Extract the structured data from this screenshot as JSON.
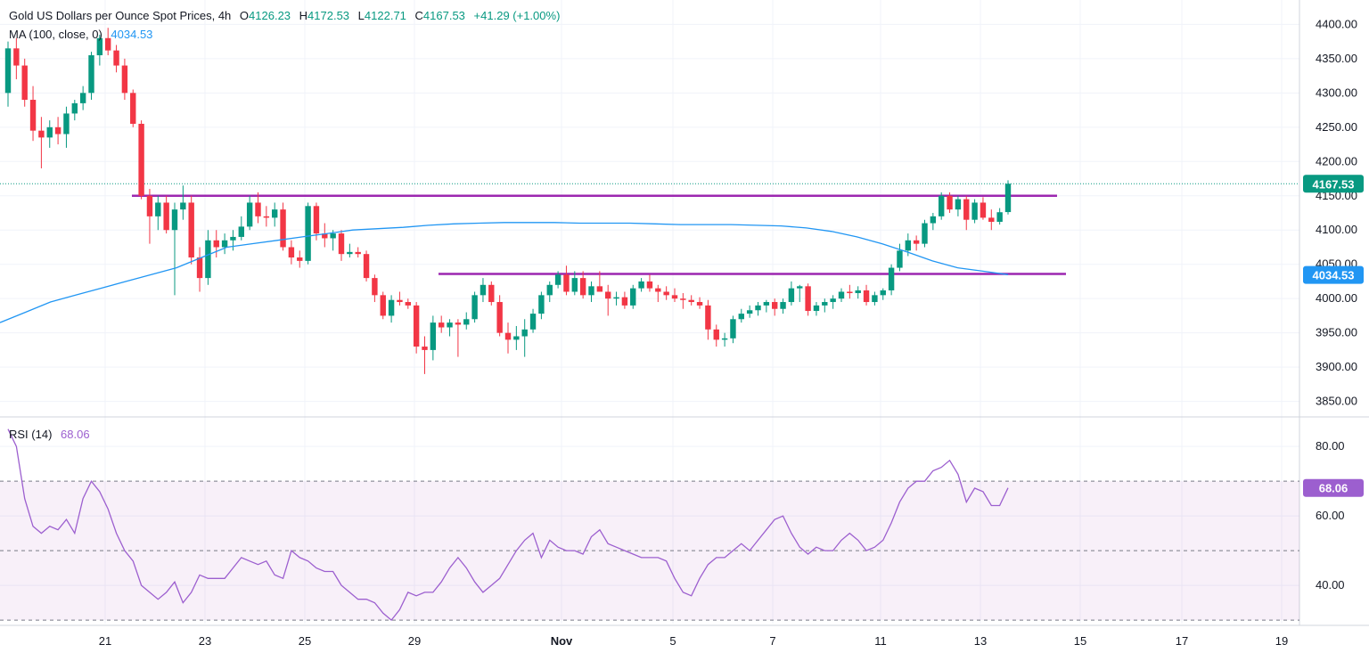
{
  "header": {
    "symbol": "Gold US Dollars per Ounce Spot Prices, 4h",
    "open_label": "O",
    "open": "4126.23",
    "high_label": "H",
    "high": "4172.53",
    "low_label": "L",
    "low": "4122.71",
    "close_label": "C",
    "close": "4167.53",
    "change": "+41.29 (+1.00%)",
    "ma_label": "MA (100, close, 0)",
    "ma_value": "4034.53",
    "rsi_label": "RSI (14)",
    "rsi_value": "68.06"
  },
  "colors": {
    "up": "#089981",
    "down": "#f23645",
    "ma": "#2196f3",
    "level": "#9c27b0",
    "rsi": "#9c5fcf",
    "grid": "#f0f3fa",
    "text": "#131722"
  },
  "chart_data": [
    {
      "type": "candlestick",
      "title": "Gold US Dollars per Ounce Spot Prices, 4h",
      "y_ticks": [
        3850,
        3900,
        3950,
        4000,
        4050,
        4100,
        4150,
        4200,
        4250,
        4300,
        4350,
        4400
      ],
      "y_tick_labels": [
        "3850.00",
        "3900.00",
        "3950.00",
        "4000.00",
        "4050.00",
        "4100.00",
        "4150.00",
        "4200.00",
        "4250.00",
        "4300.00",
        "4350.00",
        "4400.00"
      ],
      "ylim": [
        3830,
        4420
      ],
      "x_tick_labels": [
        "21",
        "23",
        "25",
        "29",
        "Nov",
        "5",
        "7",
        "11",
        "13",
        "15",
        "17",
        "19"
      ],
      "last_price_label": "4167.53",
      "ma_label_value": "4034.53",
      "horizontal_levels": [
        4150,
        4036
      ],
      "candles": [
        {
          "o": 4300,
          "h": 4375,
          "l": 4280,
          "c": 4365
        },
        {
          "o": 4365,
          "h": 4380,
          "l": 4320,
          "c": 4340
        },
        {
          "o": 4340,
          "h": 4350,
          "l": 4280,
          "c": 4290
        },
        {
          "o": 4290,
          "h": 4310,
          "l": 4230,
          "c": 4245
        },
        {
          "o": 4245,
          "h": 4265,
          "l": 4190,
          "c": 4235
        },
        {
          "o": 4235,
          "h": 4260,
          "l": 4220,
          "c": 4250
        },
        {
          "o": 4250,
          "h": 4265,
          "l": 4225,
          "c": 4240
        },
        {
          "o": 4240,
          "h": 4280,
          "l": 4220,
          "c": 4270
        },
        {
          "o": 4270,
          "h": 4290,
          "l": 4260,
          "c": 4285
        },
        {
          "o": 4285,
          "h": 4310,
          "l": 4275,
          "c": 4300
        },
        {
          "o": 4300,
          "h": 4360,
          "l": 4290,
          "c": 4355
        },
        {
          "o": 4355,
          "h": 4385,
          "l": 4340,
          "c": 4380
        },
        {
          "o": 4380,
          "h": 4395,
          "l": 4355,
          "c": 4362
        },
        {
          "o": 4362,
          "h": 4370,
          "l": 4330,
          "c": 4340
        },
        {
          "o": 4340,
          "h": 4350,
          "l": 4290,
          "c": 4300
        },
        {
          "o": 4300,
          "h": 4305,
          "l": 4250,
          "c": 4255
        },
        {
          "o": 4255,
          "h": 4260,
          "l": 4145,
          "c": 4150
        },
        {
          "o": 4150,
          "h": 4160,
          "l": 4080,
          "c": 4120
        },
        {
          "o": 4120,
          "h": 4150,
          "l": 4100,
          "c": 4140
        },
        {
          "o": 4140,
          "h": 4150,
          "l": 4095,
          "c": 4100
        },
        {
          "o": 4100,
          "h": 4140,
          "l": 4005,
          "c": 4130
        },
        {
          "o": 4130,
          "h": 4165,
          "l": 4115,
          "c": 4140
        },
        {
          "o": 4140,
          "h": 4150,
          "l": 4050,
          "c": 4060
        },
        {
          "o": 4060,
          "h": 4075,
          "l": 4010,
          "c": 4030
        },
        {
          "o": 4030,
          "h": 4100,
          "l": 4020,
          "c": 4085
        },
        {
          "o": 4085,
          "h": 4100,
          "l": 4060,
          "c": 4075
        },
        {
          "o": 4075,
          "h": 4095,
          "l": 4065,
          "c": 4085
        },
        {
          "o": 4085,
          "h": 4100,
          "l": 4070,
          "c": 4090
        },
        {
          "o": 4090,
          "h": 4120,
          "l": 4085,
          "c": 4105
        },
        {
          "o": 4105,
          "h": 4150,
          "l": 4100,
          "c": 4140
        },
        {
          "o": 4140,
          "h": 4155,
          "l": 4110,
          "c": 4120
        },
        {
          "o": 4120,
          "h": 4135,
          "l": 4105,
          "c": 4118
        },
        {
          "o": 4118,
          "h": 4140,
          "l": 4105,
          "c": 4130
        },
        {
          "o": 4130,
          "h": 4140,
          "l": 4070,
          "c": 4075
        },
        {
          "o": 4075,
          "h": 4085,
          "l": 4050,
          "c": 4060
        },
        {
          "o": 4060,
          "h": 4070,
          "l": 4045,
          "c": 4055
        },
        {
          "o": 4055,
          "h": 4140,
          "l": 4050,
          "c": 4135
        },
        {
          "o": 4135,
          "h": 4140,
          "l": 4085,
          "c": 4095
        },
        {
          "o": 4095,
          "h": 4110,
          "l": 4075,
          "c": 4088
        },
        {
          "o": 4088,
          "h": 4100,
          "l": 4070,
          "c": 4095
        },
        {
          "o": 4095,
          "h": 4100,
          "l": 4055,
          "c": 4065
        },
        {
          "o": 4065,
          "h": 4080,
          "l": 4060,
          "c": 4068
        },
        {
          "o": 4068,
          "h": 4075,
          "l": 4060,
          "c": 4065
        },
        {
          "o": 4065,
          "h": 4070,
          "l": 4025,
          "c": 4030
        },
        {
          "o": 4030,
          "h": 4035,
          "l": 3995,
          "c": 4005
        },
        {
          "o": 4005,
          "h": 4010,
          "l": 3970,
          "c": 3975
        },
        {
          "o": 3975,
          "h": 4005,
          "l": 3965,
          "c": 3998
        },
        {
          "o": 3998,
          "h": 4010,
          "l": 3990,
          "c": 3995
        },
        {
          "o": 3995,
          "h": 4000,
          "l": 3985,
          "c": 3990
        },
        {
          "o": 3990,
          "h": 3995,
          "l": 3920,
          "c": 3930
        },
        {
          "o": 3930,
          "h": 3945,
          "l": 3890,
          "c": 3925
        },
        {
          "o": 3925,
          "h": 3975,
          "l": 3910,
          "c": 3965
        },
        {
          "o": 3965,
          "h": 3975,
          "l": 3950,
          "c": 3958
        },
        {
          "o": 3958,
          "h": 3970,
          "l": 3945,
          "c": 3965
        },
        {
          "o": 3965,
          "h": 3970,
          "l": 3915,
          "c": 3962
        },
        {
          "o": 3962,
          "h": 3980,
          "l": 3955,
          "c": 3970
        },
        {
          "o": 3970,
          "h": 4010,
          "l": 3965,
          "c": 4005
        },
        {
          "o": 4005,
          "h": 4030,
          "l": 3995,
          "c": 4020
        },
        {
          "o": 4020,
          "h": 4025,
          "l": 3990,
          "c": 3995
        },
        {
          "o": 3995,
          "h": 4005,
          "l": 3945,
          "c": 3950
        },
        {
          "o": 3950,
          "h": 3965,
          "l": 3920,
          "c": 3940
        },
        {
          "o": 3940,
          "h": 3960,
          "l": 3925,
          "c": 3945
        },
        {
          "o": 3945,
          "h": 3970,
          "l": 3915,
          "c": 3955
        },
        {
          "o": 3955,
          "h": 3985,
          "l": 3950,
          "c": 3978
        },
        {
          "o": 3978,
          "h": 4010,
          "l": 3970,
          "c": 4005
        },
        {
          "o": 4005,
          "h": 4025,
          "l": 3995,
          "c": 4020
        },
        {
          "o": 4020,
          "h": 4040,
          "l": 4015,
          "c": 4035
        },
        {
          "o": 4035,
          "h": 4048,
          "l": 4005,
          "c": 4010
        },
        {
          "o": 4010,
          "h": 4040,
          "l": 4005,
          "c": 4030
        },
        {
          "o": 4030,
          "h": 4040,
          "l": 4000,
          "c": 4005
        },
        {
          "o": 4005,
          "h": 4025,
          "l": 3995,
          "c": 4018
        },
        {
          "o": 4018,
          "h": 4040,
          "l": 4010,
          "c": 4010
        },
        {
          "o": 4010,
          "h": 4020,
          "l": 3975,
          "c": 4000
        },
        {
          "o": 4000,
          "h": 4010,
          "l": 3990,
          "c": 4002
        },
        {
          "o": 4002,
          "h": 4010,
          "l": 3985,
          "c": 3990
        },
        {
          "o": 3990,
          "h": 4020,
          "l": 3985,
          "c": 4015
        },
        {
          "o": 4015,
          "h": 4030,
          "l": 4010,
          "c": 4025
        },
        {
          "o": 4025,
          "h": 4035,
          "l": 4010,
          "c": 4015
        },
        {
          "o": 4015,
          "h": 4020,
          "l": 3995,
          "c": 4010
        },
        {
          "o": 4010,
          "h": 4018,
          "l": 3998,
          "c": 4005
        },
        {
          "o": 4005,
          "h": 4015,
          "l": 3995,
          "c": 4000
        },
        {
          "o": 4000,
          "h": 4008,
          "l": 3985,
          "c": 3998
        },
        {
          "o": 3998,
          "h": 4005,
          "l": 3990,
          "c": 3995
        },
        {
          "o": 3995,
          "h": 4002,
          "l": 3985,
          "c": 3990
        },
        {
          "o": 3990,
          "h": 3998,
          "l": 3940,
          "c": 3955
        },
        {
          "o": 3955,
          "h": 3962,
          "l": 3930,
          "c": 3940
        },
        {
          "o": 3940,
          "h": 3950,
          "l": 3930,
          "c": 3942
        },
        {
          "o": 3942,
          "h": 3975,
          "l": 3935,
          "c": 3970
        },
        {
          "o": 3970,
          "h": 3985,
          "l": 3965,
          "c": 3978
        },
        {
          "o": 3978,
          "h": 3990,
          "l": 3972,
          "c": 3983
        },
        {
          "o": 3983,
          "h": 3995,
          "l": 3975,
          "c": 3990
        },
        {
          "o": 3990,
          "h": 3998,
          "l": 3980,
          "c": 3995
        },
        {
          "o": 3995,
          "h": 4000,
          "l": 3975,
          "c": 3985
        },
        {
          "o": 3985,
          "h": 4000,
          "l": 3978,
          "c": 3995
        },
        {
          "o": 3995,
          "h": 4025,
          "l": 3990,
          "c": 4015
        },
        {
          "o": 4015,
          "h": 4020,
          "l": 3995,
          "c": 4018
        },
        {
          "o": 4018,
          "h": 4022,
          "l": 3975,
          "c": 3982
        },
        {
          "o": 3982,
          "h": 3995,
          "l": 3975,
          "c": 3990
        },
        {
          "o": 3990,
          "h": 4000,
          "l": 3980,
          "c": 3995
        },
        {
          "o": 3995,
          "h": 4005,
          "l": 3985,
          "c": 4000
        },
        {
          "o": 4000,
          "h": 4015,
          "l": 3995,
          "c": 4010
        },
        {
          "o": 4010,
          "h": 4020,
          "l": 4000,
          "c": 4008
        },
        {
          "o": 4008,
          "h": 4018,
          "l": 4000,
          "c": 4012
        },
        {
          "o": 4012,
          "h": 4020,
          "l": 3990,
          "c": 3995
        },
        {
          "o": 3995,
          "h": 4010,
          "l": 3990,
          "c": 4005
        },
        {
          "o": 4005,
          "h": 4015,
          "l": 3998,
          "c": 4012
        },
        {
          "o": 4012,
          "h": 4050,
          "l": 4005,
          "c": 4045
        },
        {
          "o": 4045,
          "h": 4080,
          "l": 4040,
          "c": 4070
        },
        {
          "o": 4070,
          "h": 4095,
          "l": 4062,
          "c": 4085
        },
        {
          "o": 4085,
          "h": 4092,
          "l": 4070,
          "c": 4080
        },
        {
          "o": 4080,
          "h": 4115,
          "l": 4075,
          "c": 4110
        },
        {
          "o": 4110,
          "h": 4125,
          "l": 4100,
          "c": 4120
        },
        {
          "o": 4120,
          "h": 4155,
          "l": 4115,
          "c": 4150
        },
        {
          "o": 4150,
          "h": 4155,
          "l": 4125,
          "c": 4130
        },
        {
          "o": 4130,
          "h": 4150,
          "l": 4120,
          "c": 4145
        },
        {
          "o": 4145,
          "h": 4150,
          "l": 4100,
          "c": 4115
        },
        {
          "o": 4115,
          "h": 4145,
          "l": 4110,
          "c": 4140
        },
        {
          "o": 4140,
          "h": 4148,
          "l": 4115,
          "c": 4118
        },
        {
          "o": 4118,
          "h": 4130,
          "l": 4100,
          "c": 4112
        },
        {
          "o": 4112,
          "h": 4132,
          "l": 4108,
          "c": 4126
        },
        {
          "o": 4126.23,
          "h": 4172.53,
          "l": 4122.71,
          "c": 4167.53
        }
      ],
      "ma_100": [
        3965,
        3980,
        3995,
        4005,
        4015,
        4025,
        4035,
        4045,
        4060,
        4075,
        4080,
        4085,
        4090,
        4095,
        4100,
        4102,
        4104,
        4107,
        4109,
        4110,
        4111,
        4111,
        4111,
        4110,
        4110,
        4110,
        4109,
        4108,
        4108,
        4108,
        4107,
        4106,
        4103,
        4098,
        4090,
        4080,
        4068,
        4055,
        4045,
        4040,
        4035
      ]
    },
    {
      "type": "line",
      "title": "RSI (14)",
      "y_ticks": [
        40,
        60,
        80
      ],
      "y_tick_labels": [
        "40.00",
        "60.00",
        "80.00"
      ],
      "ylim": [
        29,
        88
      ],
      "levels": [
        70,
        50,
        30
      ],
      "last_value_label": "68.06",
      "values": [
        85,
        80,
        65,
        57,
        55,
        57,
        56,
        59,
        55,
        65,
        70,
        67,
        62,
        55,
        50,
        47,
        40,
        38,
        36,
        38,
        41,
        35,
        38,
        43,
        42,
        42,
        42,
        45,
        48,
        47,
        46,
        47,
        43,
        42,
        50,
        48,
        47,
        45,
        44,
        44,
        40,
        38,
        36,
        36,
        35,
        32,
        30,
        33,
        38,
        37,
        38,
        38,
        41,
        45,
        48,
        45,
        41,
        38,
        40,
        42,
        46,
        50,
        53,
        55,
        48,
        53,
        51,
        50,
        50,
        49,
        54,
        56,
        52,
        51,
        50,
        49,
        48,
        48,
        48,
        47,
        42,
        38,
        37,
        42,
        46,
        48,
        48,
        50,
        52,
        50,
        53,
        56,
        59,
        60,
        55,
        51,
        49,
        51,
        50,
        50,
        53,
        55,
        53,
        50,
        51,
        53,
        58,
        64,
        68,
        70,
        70,
        73,
        74,
        76,
        72,
        64,
        68,
        67,
        63,
        63,
        68.06
      ]
    }
  ]
}
